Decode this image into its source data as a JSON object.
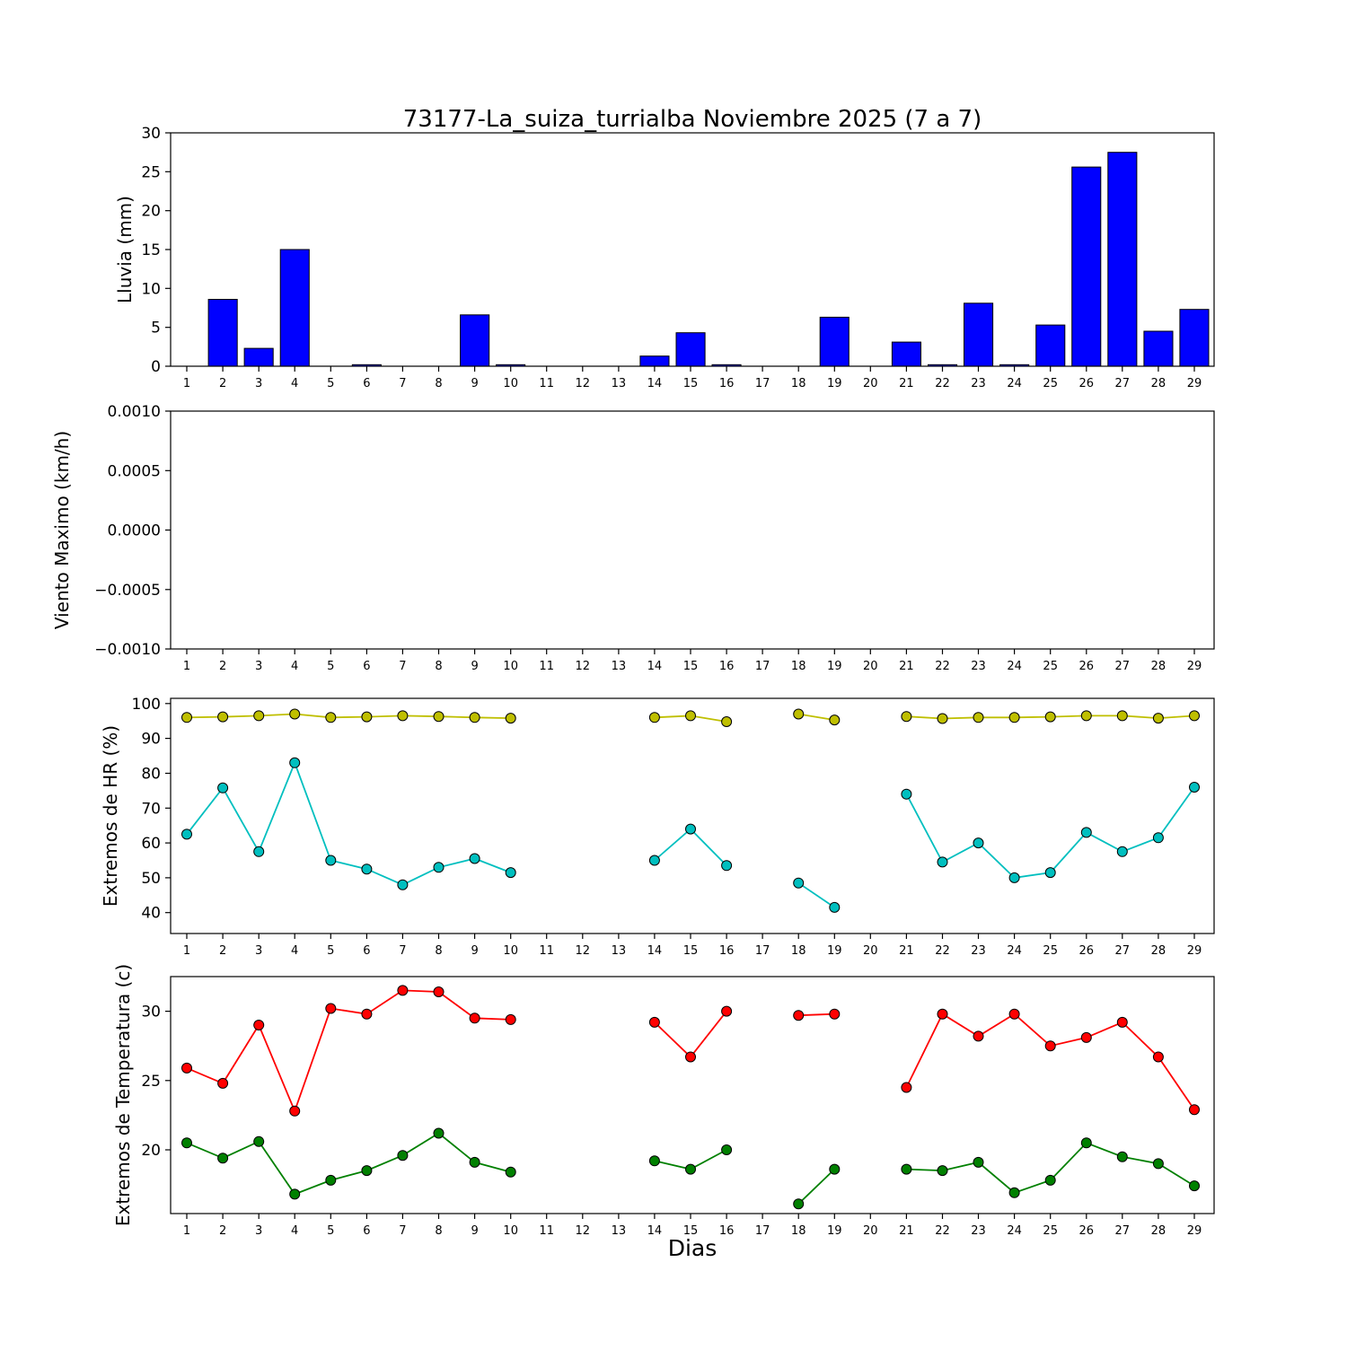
{
  "days": [
    1,
    2,
    3,
    4,
    5,
    6,
    7,
    8,
    9,
    10,
    11,
    12,
    13,
    14,
    15,
    16,
    17,
    18,
    19,
    20,
    21,
    22,
    23,
    24,
    25,
    26,
    27,
    28,
    29
  ],
  "chart_data": [
    {
      "type": "bar",
      "name": "lluvia",
      "title": "73177-La_suiza_turrialba Noviembre 2025  (7 a 7)",
      "ylabel": "Lluvia (mm)",
      "ylim": [
        0,
        30
      ],
      "xlim": [
        0.55,
        29.55
      ],
      "yticks": [
        0,
        5,
        10,
        15,
        20,
        25,
        30
      ],
      "ytick_labels": [
        "0",
        "5",
        "10",
        "15",
        "20",
        "25",
        "30"
      ],
      "bar_color": "#0000ff",
      "bar_edge_color": "#000000",
      "bar_width": 0.8,
      "values": [
        0,
        8.6,
        2.3,
        15.0,
        0,
        0.2,
        0,
        0,
        6.6,
        0.2,
        0,
        0,
        0,
        1.3,
        4.3,
        0.2,
        0,
        0,
        6.3,
        0,
        3.1,
        0.2,
        8.1,
        0.2,
        5.3,
        25.6,
        27.5,
        4.5,
        7.3
      ]
    },
    {
      "type": "line",
      "name": "viento",
      "ylabel": "Viento Maximo (km/h)",
      "ylim": [
        -0.001,
        0.001
      ],
      "xlim": [
        0.55,
        29.55
      ],
      "yticks": [
        -0.001,
        -0.0005,
        0,
        0.0005,
        0.001
      ],
      "ytick_labels": [
        "−0.0010",
        "−0.0005",
        "0.0000",
        "0.0005",
        "0.0010"
      ],
      "series": []
    },
    {
      "type": "line",
      "name": "hr",
      "ylabel": "Extremos de HR (%)",
      "ylim": [
        34,
        101.5
      ],
      "xlim": [
        0.55,
        29.55
      ],
      "yticks": [
        40,
        50,
        60,
        70,
        80,
        90,
        100
      ],
      "ytick_labels": [
        "40",
        "50",
        "60",
        "70",
        "80",
        "90",
        "100"
      ],
      "series": [
        {
          "name": "hr-max",
          "color": "#bfbf00",
          "values": [
            96.0,
            96.2,
            96.5,
            97.0,
            96.0,
            96.2,
            96.5,
            96.3,
            96.0,
            95.8,
            null,
            null,
            null,
            96.0,
            96.5,
            94.8,
            null,
            97.0,
            95.3,
            null,
            96.3,
            95.7,
            96.0,
            96.0,
            96.2,
            96.5,
            96.5,
            95.8,
            96.5
          ]
        },
        {
          "name": "hr-min",
          "color": "#00bfbf",
          "values": [
            62.5,
            75.8,
            57.5,
            83.0,
            55.0,
            52.5,
            48.0,
            53.0,
            55.5,
            51.5,
            null,
            null,
            null,
            55.0,
            64.0,
            53.5,
            null,
            48.5,
            41.5,
            null,
            74.0,
            54.5,
            60.0,
            50.0,
            51.5,
            63.0,
            57.5,
            61.5,
            76.0
          ]
        }
      ]
    },
    {
      "type": "line",
      "name": "temperatura",
      "ylabel": "Extremos de Temperatura (c)",
      "xlabel": "Dias",
      "ylim": [
        15.4,
        32.5
      ],
      "xlim": [
        0.55,
        29.55
      ],
      "yticks": [
        20,
        25,
        30
      ],
      "ytick_labels": [
        "20",
        "25",
        "30"
      ],
      "series": [
        {
          "name": "temp-max",
          "color": "#ff0000",
          "values": [
            25.9,
            24.8,
            29.0,
            22.8,
            30.2,
            29.8,
            31.5,
            31.4,
            29.5,
            29.4,
            null,
            null,
            null,
            29.2,
            26.7,
            30.0,
            null,
            29.7,
            29.8,
            null,
            24.5,
            29.8,
            28.2,
            29.8,
            27.5,
            28.1,
            29.2,
            26.7,
            22.9
          ]
        },
        {
          "name": "temp-min",
          "color": "#008000",
          "values": [
            20.5,
            19.4,
            20.6,
            16.8,
            17.8,
            18.5,
            19.6,
            21.2,
            19.1,
            18.4,
            null,
            null,
            null,
            19.2,
            18.6,
            20.0,
            null,
            16.1,
            18.6,
            null,
            18.6,
            18.5,
            19.1,
            16.9,
            17.8,
            20.5,
            19.5,
            19.0,
            17.4
          ]
        }
      ]
    }
  ]
}
